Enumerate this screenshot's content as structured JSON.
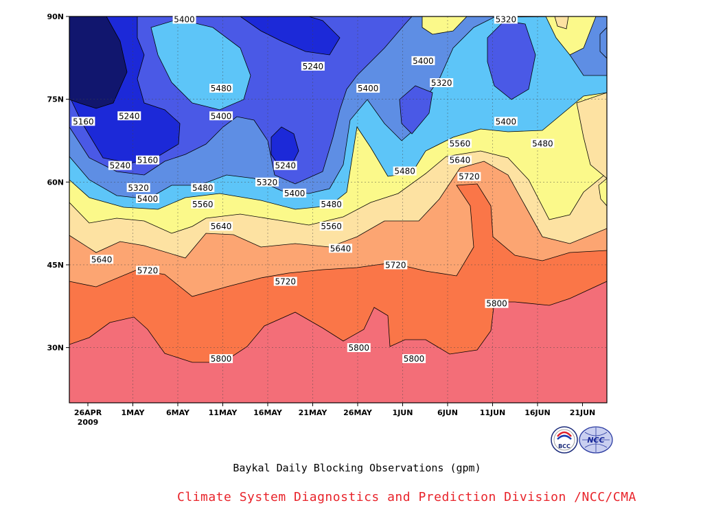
{
  "chart_data": {
    "type": "heatmap",
    "title": "Baykal Daily Blocking Observations (gpm)",
    "x_tick_labels": [
      "26APR",
      "1MAY",
      "6MAY",
      "11MAY",
      "16MAY",
      "21MAY",
      "26MAY",
      "1JUN",
      "6JUN",
      "11JUN",
      "16JUN",
      "21JUN"
    ],
    "x_tick_sublabel": "2009",
    "y_tick_labels": [
      "90N",
      "75N",
      "60N",
      "45N",
      "30N"
    ],
    "y_ticks": [
      90,
      75,
      60,
      45,
      30
    ],
    "ylim": [
      20,
      90
    ],
    "x_range": [
      "2009-04-25",
      "2009-06-21"
    ],
    "grid": true,
    "contour_levels": [
      5160,
      5240,
      5320,
      5400,
      5480,
      5560,
      5640,
      5720,
      5800
    ],
    "level_colors": [
      "#11166e",
      "#1c29d8",
      "#4a59e6",
      "#5e8ee4",
      "#5dc5f8",
      "#fbf98a",
      "#fde2a2",
      "#fca572",
      "#fa7648",
      "#f36e78"
    ],
    "contour_labels": [
      {
        "text": "5400",
        "date": "2009-05-07",
        "lat": 90
      },
      {
        "text": "5320",
        "date": "2009-06-11",
        "lat": 90
      },
      {
        "text": "5240",
        "date": "2009-05-21",
        "lat": 81
      },
      {
        "text": "5400",
        "date": "2009-06-02",
        "lat": 82
      },
      {
        "text": "5480",
        "date": "2009-05-11",
        "lat": 77
      },
      {
        "text": "5400",
        "date": "2009-05-27",
        "lat": 77
      },
      {
        "text": "5320",
        "date": "2009-06-04",
        "lat": 78
      },
      {
        "text": "5160",
        "date": "2009-04-26",
        "lat": 71
      },
      {
        "text": "5240",
        "date": "2009-05-01",
        "lat": 72
      },
      {
        "text": "5400",
        "date": "2009-05-11",
        "lat": 72
      },
      {
        "text": "5400",
        "date": "2009-06-11",
        "lat": 71
      },
      {
        "text": "5480",
        "date": "2009-06-15",
        "lat": 67
      },
      {
        "text": "5560",
        "date": "2009-06-06",
        "lat": 67
      },
      {
        "text": "5160",
        "date": "2009-05-03",
        "lat": 64
      },
      {
        "text": "5240",
        "date": "2009-04-30",
        "lat": 63
      },
      {
        "text": "5640",
        "date": "2009-06-06",
        "lat": 64
      },
      {
        "text": "5240",
        "date": "2009-05-18",
        "lat": 63
      },
      {
        "text": "5480",
        "date": "2009-05-31",
        "lat": 62
      },
      {
        "text": "5720",
        "date": "2009-06-07",
        "lat": 61
      },
      {
        "text": "5320",
        "date": "2009-05-16",
        "lat": 60
      },
      {
        "text": "5320",
        "date": "2009-05-02",
        "lat": 59
      },
      {
        "text": "5480",
        "date": "2009-05-09",
        "lat": 59
      },
      {
        "text": "5400",
        "date": "2009-05-19",
        "lat": 58
      },
      {
        "text": "5400",
        "date": "2009-05-03",
        "lat": 57
      },
      {
        "text": "5560",
        "date": "2009-05-09",
        "lat": 56
      },
      {
        "text": "5480",
        "date": "2009-05-23",
        "lat": 56
      },
      {
        "text": "5560",
        "date": "2009-05-23",
        "lat": 52
      },
      {
        "text": "5640",
        "date": "2009-05-11",
        "lat": 52
      },
      {
        "text": "5640",
        "date": "2009-05-24",
        "lat": 48
      },
      {
        "text": "5640",
        "date": "2009-04-28",
        "lat": 46
      },
      {
        "text": "5720",
        "date": "2009-05-30",
        "lat": 45
      },
      {
        "text": "5720",
        "date": "2009-05-03",
        "lat": 44
      },
      {
        "text": "5720",
        "date": "2009-05-18",
        "lat": 42
      },
      {
        "text": "5800",
        "date": "2009-06-10",
        "lat": 38
      },
      {
        "text": "5800",
        "date": "2009-05-26",
        "lat": 30
      },
      {
        "text": "5800",
        "date": "2009-06-01",
        "lat": 28
      },
      {
        "text": "5800",
        "date": "2009-05-11",
        "lat": 28
      }
    ]
  },
  "credit": "Climate System Diagnostics and Prediction Division /NCC/CMA",
  "logos": [
    {
      "name": "bcc-logo",
      "text": "BCC"
    },
    {
      "name": "ncc-logo",
      "text": "NCC"
    }
  ]
}
